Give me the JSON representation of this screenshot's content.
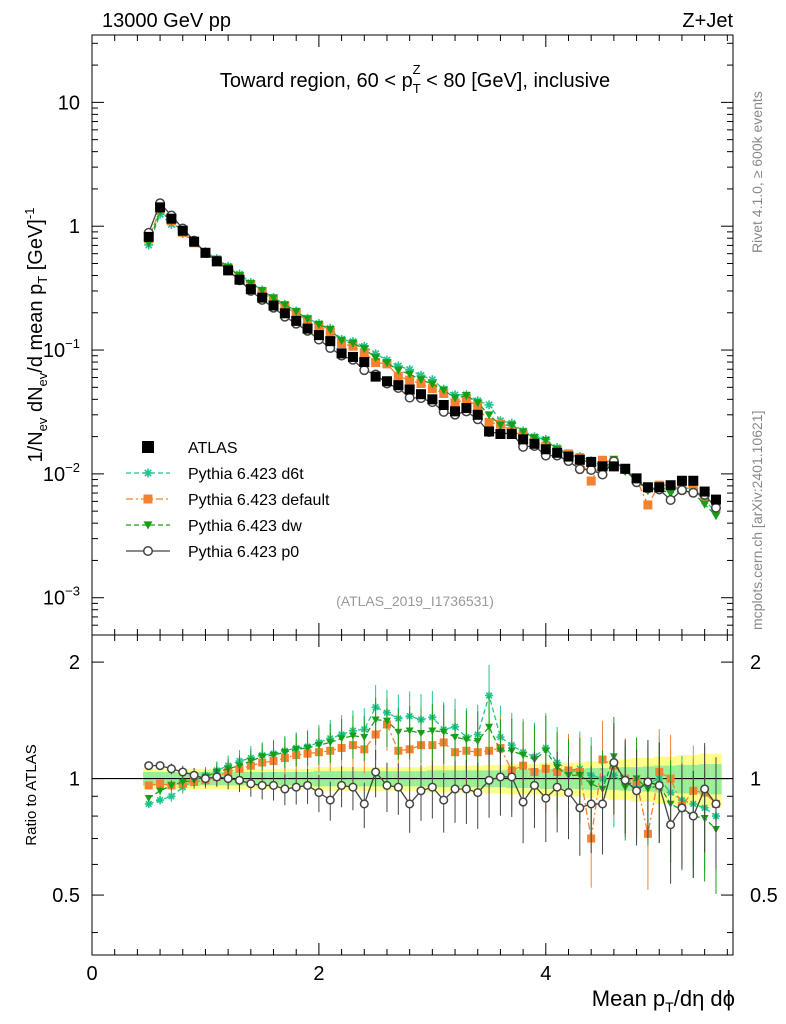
{
  "header": {
    "left_label": "13000 GeV pp",
    "right_label": "Z+Jet"
  },
  "side_labels": {
    "rivet": "Rivet 4.1.0, ≥ 600k events",
    "mcplots": "mcplots.cern.ch [arXiv:2401.10621]"
  },
  "chart_data": {
    "type": "scatter",
    "title": "Toward region, 60 < p_T^Z < 80 [GeV], inclusive",
    "title_parts": {
      "prefix": "Toward region, 60 < p",
      "sub": "T",
      "sup": "Z",
      "suffix": " < 80 [GeV], inclusive"
    },
    "reference": "(ATLAS_2019_I1736531)",
    "xlabel": "Mean p_T/dη dϕ",
    "xlabel_parts": {
      "prefix": "Mean p",
      "sub": "T",
      "suffix": "/dη dϕ"
    },
    "ylabel": "1/N_ev dN_ev/d mean p_T [GeV]^-1",
    "ylabel_parts": {
      "a": "1/N",
      "a_sub": "ev",
      "b": " dN",
      "b_sub": "ev",
      "c": "/d mean p",
      "c_sub": "T",
      "d": " [GeV]",
      "d_sup": "-1"
    },
    "ratio_ylabel": "Ratio to ATLAS",
    "xlim": [
      0,
      5.65
    ],
    "ylim": [
      0.0005,
      35
    ],
    "yscale": "log",
    "ratio_ylim": [
      0.35,
      2.35
    ],
    "x_ticks": [
      0,
      2,
      4
    ],
    "x_tick_labels": [
      "0",
      "2",
      "4"
    ],
    "y_ticks": [
      0.001,
      0.01,
      0.1,
      1,
      10
    ],
    "y_tick_labels": [
      {
        "base": "10",
        "exp": "−3"
      },
      {
        "base": "10",
        "exp": "−2"
      },
      {
        "base": "10",
        "exp": "−1"
      },
      {
        "base": "1",
        "exp": ""
      },
      {
        "base": "10",
        "exp": ""
      }
    ],
    "ratio_ticks": [
      0.5,
      1,
      2
    ],
    "ratio_tick_labels": [
      "0.5",
      "1",
      "2"
    ],
    "x": [
      0.5,
      0.6,
      0.7,
      0.8,
      0.9,
      1.0,
      1.1,
      1.2,
      1.3,
      1.4,
      1.5,
      1.6,
      1.7,
      1.8,
      1.9,
      2.0,
      2.1,
      2.2,
      2.3,
      2.4,
      2.5,
      2.6,
      2.7,
      2.8,
      2.9,
      3.0,
      3.1,
      3.2,
      3.3,
      3.4,
      3.5,
      3.6,
      3.7,
      3.8,
      3.9,
      4.0,
      4.1,
      4.2,
      4.3,
      4.4,
      4.5,
      4.6,
      4.7,
      4.8,
      4.9,
      5.0,
      5.1,
      5.2,
      5.3,
      5.4,
      5.5
    ],
    "data_values": [
      0.82,
      1.42,
      1.15,
      0.92,
      0.75,
      0.61,
      0.52,
      0.44,
      0.37,
      0.31,
      0.265,
      0.229,
      0.198,
      0.172,
      0.149,
      0.132,
      0.118,
      0.094,
      0.088,
      0.08,
      0.061,
      0.056,
      0.052,
      0.048,
      0.044,
      0.04,
      0.036,
      0.032,
      0.034,
      0.03,
      0.022,
      0.021,
      0.021,
      0.019,
      0.0175,
      0.0158,
      0.0148,
      0.0138,
      0.013,
      0.0125,
      0.0115,
      0.0115,
      0.011,
      0.0092,
      0.0078,
      0.0078,
      0.0081,
      0.0088,
      0.0088,
      0.0072,
      0.0062
    ],
    "band_inner": [
      0.04,
      0.04,
      0.04,
      0.04,
      0.04,
      0.04,
      0.04,
      0.04,
      0.04,
      0.04,
      0.04,
      0.04,
      0.04,
      0.04,
      0.04,
      0.045,
      0.045,
      0.045,
      0.045,
      0.045,
      0.045,
      0.045,
      0.045,
      0.045,
      0.045,
      0.05,
      0.05,
      0.05,
      0.05,
      0.05,
      0.05,
      0.05,
      0.055,
      0.055,
      0.055,
      0.06,
      0.06,
      0.06,
      0.06,
      0.065,
      0.065,
      0.065,
      0.07,
      0.07,
      0.075,
      0.08,
      0.08,
      0.085,
      0.085,
      0.09,
      0.09
    ],
    "band_outer": [
      0.06,
      0.06,
      0.06,
      0.06,
      0.06,
      0.06,
      0.06,
      0.06,
      0.06,
      0.06,
      0.06,
      0.06,
      0.06,
      0.06,
      0.06,
      0.07,
      0.07,
      0.07,
      0.07,
      0.07,
      0.07,
      0.07,
      0.07,
      0.07,
      0.07,
      0.08,
      0.08,
      0.08,
      0.08,
      0.08,
      0.085,
      0.085,
      0.09,
      0.09,
      0.09,
      0.1,
      0.1,
      0.1,
      0.1,
      0.11,
      0.11,
      0.12,
      0.12,
      0.13,
      0.13,
      0.14,
      0.14,
      0.15,
      0.15,
      0.16,
      0.16
    ],
    "band_colors": {
      "inner": "#99ee99",
      "outer": "#ffff88"
    },
    "series": [
      {
        "name": "ATLAS",
        "color": "#000000",
        "marker": "square",
        "line": "none",
        "values": [
          0.82,
          1.42,
          1.15,
          0.92,
          0.75,
          0.61,
          0.52,
          0.44,
          0.37,
          0.31,
          0.265,
          0.229,
          0.198,
          0.172,
          0.149,
          0.132,
          0.118,
          0.094,
          0.088,
          0.08,
          0.061,
          0.056,
          0.052,
          0.048,
          0.044,
          0.04,
          0.036,
          0.032,
          0.034,
          0.03,
          0.022,
          0.021,
          0.021,
          0.019,
          0.0175,
          0.0158,
          0.0148,
          0.0138,
          0.013,
          0.0125,
          0.0115,
          0.0115,
          0.011,
          0.0092,
          0.0078,
          0.0078,
          0.0081,
          0.0088,
          0.0088,
          0.0072,
          0.0062
        ]
      },
      {
        "name": "Pythia 6.423 d6t",
        "color": "#1ec48f",
        "marker": "asterisk",
        "line": "dashed",
        "ratio": [
          0.86,
          0.88,
          0.9,
          0.95,
          0.99,
          1.02,
          1.05,
          1.08,
          1.11,
          1.13,
          1.15,
          1.16,
          1.18,
          1.2,
          1.21,
          1.24,
          1.27,
          1.3,
          1.33,
          1.34,
          1.53,
          1.48,
          1.43,
          1.45,
          1.42,
          1.44,
          1.34,
          1.36,
          1.28,
          1.3,
          1.64,
          1.28,
          1.22,
          1.17,
          1.14,
          1.2,
          1.1,
          1.05,
          1.06,
          1.02,
          1.0,
          1.02,
          0.97,
          0.95,
          0.97,
          1.0,
          0.92,
          0.88,
          0.86,
          0.84,
          0.8
        ]
      },
      {
        "name": "Pythia 6.423 default",
        "color": "#f58231",
        "marker": "square",
        "line": "dashdot",
        "ratio": [
          0.96,
          0.97,
          0.96,
          0.97,
          0.98,
          0.99,
          1.01,
          1.04,
          1.06,
          1.08,
          1.1,
          1.11,
          1.13,
          1.15,
          1.16,
          1.17,
          1.18,
          1.2,
          1.22,
          1.19,
          1.3,
          1.38,
          1.18,
          1.19,
          1.22,
          1.22,
          1.24,
          1.17,
          1.18,
          1.17,
          1.18,
          1.2,
          1.05,
          1.08,
          1.04,
          1.06,
          1.04,
          1.05,
          1.04,
          0.7,
          1.12,
          1.08,
          1.0,
          0.98,
          0.72,
          1.04,
          1.0,
          0.85,
          0.93,
          0.92,
          0.86
        ]
      },
      {
        "name": "Pythia 6.423 dw",
        "color": "#17a017",
        "marker": "triangle-down",
        "line": "dashed",
        "ratio": [
          0.89,
          0.93,
          0.96,
          0.98,
          0.99,
          1.01,
          1.04,
          1.06,
          1.08,
          1.11,
          1.14,
          1.15,
          1.17,
          1.19,
          1.2,
          1.22,
          1.24,
          1.27,
          1.29,
          1.28,
          1.42,
          1.41,
          1.32,
          1.33,
          1.31,
          1.33,
          1.32,
          1.28,
          1.26,
          1.25,
          1.36,
          1.18,
          1.18,
          1.15,
          1.12,
          1.18,
          1.07,
          1.02,
          1.02,
          0.97,
          0.94,
          1.14,
          0.95,
          1.0,
          0.94,
          0.96,
          0.86,
          0.83,
          0.8,
          0.79,
          0.74
        ]
      },
      {
        "name": "Pythia 6.423 p0",
        "color": "#444444",
        "marker": "open-circle",
        "line": "solid",
        "ratio": [
          1.08,
          1.08,
          1.06,
          1.04,
          1.02,
          1.0,
          1.01,
          1.0,
          0.99,
          0.97,
          0.96,
          0.96,
          0.94,
          0.95,
          0.96,
          0.92,
          0.88,
          0.96,
          0.95,
          0.86,
          1.04,
          0.96,
          0.95,
          0.86,
          0.93,
          0.95,
          0.88,
          0.94,
          0.94,
          0.92,
          0.99,
          1.01,
          1.01,
          0.87,
          0.96,
          0.89,
          0.95,
          0.92,
          0.84,
          0.86,
          0.86,
          1.1,
          0.99,
          0.93,
          0.98,
          0.96,
          0.76,
          0.84,
          0.8,
          0.94,
          0.86
        ]
      }
    ]
  }
}
